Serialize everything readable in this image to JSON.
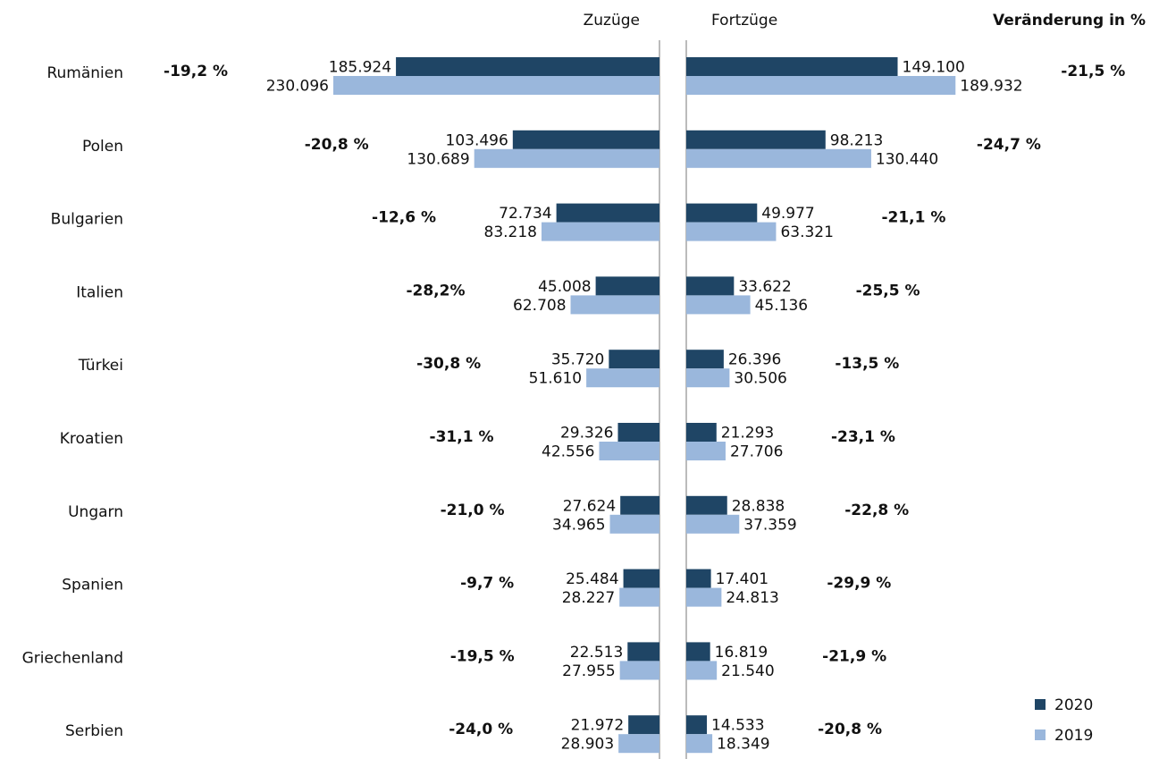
{
  "chart_data": {
    "type": "butterfly",
    "left_title": "Zuzüge",
    "right_title": "Fortzüge",
    "change_title": "Veränderung in %",
    "change_color": "#e8845a",
    "categories": [
      "Rumänien",
      "Polen",
      "Bulgarien",
      "Italien",
      "Türkei",
      "Kroatien",
      "Ungarn",
      "Spanien",
      "Griechenland",
      "Serbien"
    ],
    "left": {
      "series": [
        {
          "name": "2020",
          "color": "#1f4565",
          "values": [
            185924,
            103496,
            72734,
            45008,
            35720,
            29326,
            27624,
            25484,
            22513,
            21972
          ],
          "value_labels": [
            "185.924",
            "103.496",
            "72.734",
            "45.008",
            "35.720",
            "29.326",
            "27.624",
            "25.484",
            "22.513",
            "21.972"
          ]
        },
        {
          "name": "2019",
          "color": "#9ab7dc",
          "values": [
            230096,
            130689,
            83218,
            62708,
            51610,
            42556,
            34965,
            28227,
            27955,
            28903
          ],
          "value_labels": [
            "230.096",
            "130.689",
            "83.218",
            "62.708",
            "51.610",
            "42.556",
            "34.965",
            "28.227",
            "27.955",
            "28.903"
          ]
        }
      ],
      "change": {
        "values": [
          -19.2,
          -20.8,
          -12.6,
          -28.2,
          -30.8,
          -31.1,
          -21.0,
          -9.7,
          -19.5,
          -24.0
        ],
        "value_labels": [
          "-19,2 %",
          "-20,8 %",
          "-12,6 %",
          "-28,2%",
          "-30,8 %",
          "-31,1 %",
          "-21,0 %",
          "-9,7 %",
          "-19,5 %",
          "-24,0 %"
        ]
      }
    },
    "right": {
      "series": [
        {
          "name": "2020",
          "color": "#1f4565",
          "values": [
            149100,
            98213,
            49977,
            33622,
            26396,
            21293,
            28838,
            17401,
            16819,
            14533
          ],
          "value_labels": [
            "149.100",
            "98.213",
            "49.977",
            "33.622",
            "26.396",
            "21.293",
            "28.838",
            "17.401",
            "16.819",
            "14.533"
          ]
        },
        {
          "name": "2019",
          "color": "#9ab7dc",
          "values": [
            189932,
            130440,
            63321,
            45136,
            30506,
            27706,
            37359,
            24813,
            21540,
            18349
          ],
          "value_labels": [
            "189.932",
            "130.440",
            "63.321",
            "45.136",
            "30.506",
            "27.706",
            "37.359",
            "24.813",
            "21.540",
            "18.349"
          ]
        }
      ],
      "change": {
        "values": [
          -21.5,
          -24.7,
          -21.1,
          -25.5,
          -13.5,
          -23.1,
          -22.8,
          -29.9,
          -21.9,
          -20.8
        ],
        "value_labels": [
          "-21,5 %",
          "-24,7 %",
          "-21,1 %",
          "-25,5 %",
          "-13,5 %",
          "-23,1 %",
          "-22,8 %",
          "-29,9 %",
          "-21,9 %",
          "-20,8 %"
        ]
      }
    }
  }
}
